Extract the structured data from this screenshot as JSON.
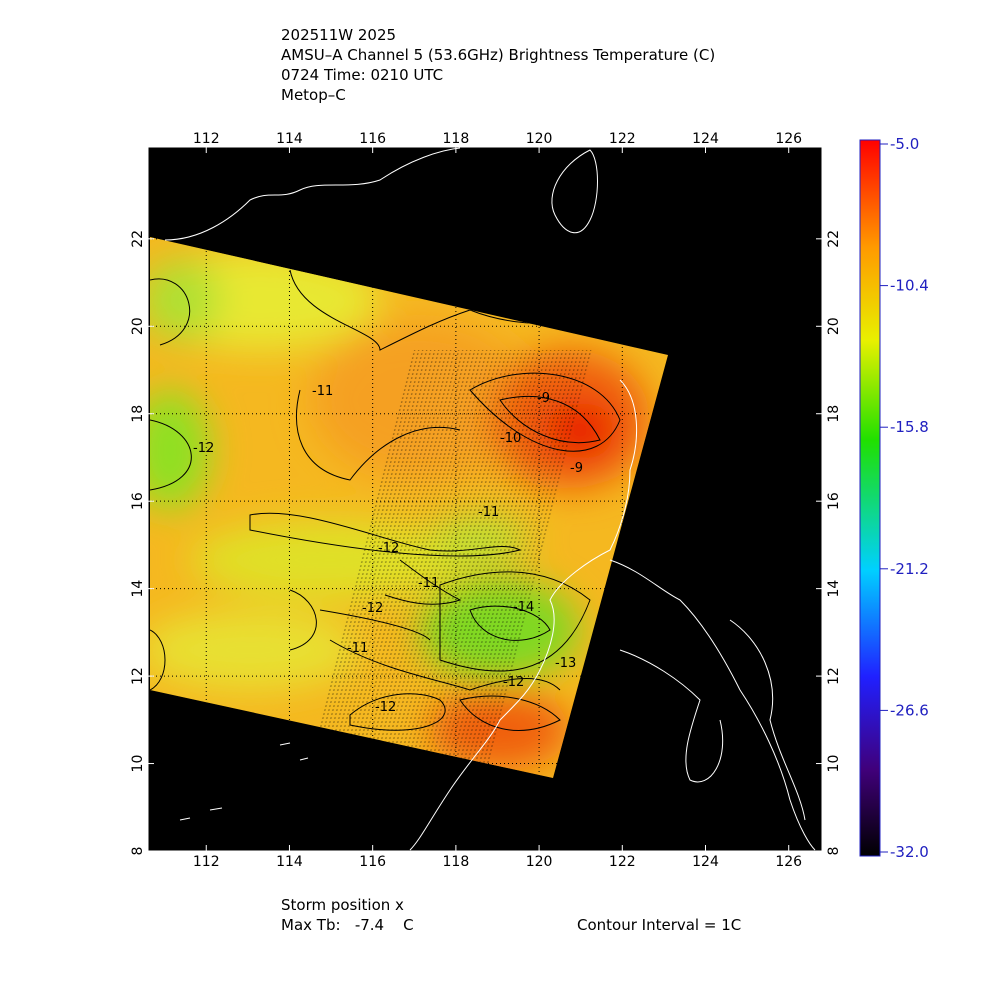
{
  "chart_data": {
    "type": "map",
    "title": [
      "202511W 2025",
      "AMSU–A Channel 5 (53.6GHz) Brightness Temperature (C)",
      "0724 Time: 0210 UTC",
      "Metop–C"
    ],
    "xlim": [
      110.6,
      126.8
    ],
    "xticks": [
      112,
      114,
      116,
      118,
      120,
      122,
      124,
      126
    ],
    "ylim": [
      8,
      24.1
    ],
    "yticks": [
      8,
      10,
      12,
      14,
      16,
      18,
      20,
      22
    ],
    "grid": true,
    "clim": [
      -32,
      -5
    ],
    "cticks": [
      {
        "value": -5,
        "label": "-5.0"
      },
      -10.4,
      -15.8,
      -21.2,
      -26.6,
      {
        "value": -32,
        "label": "-32.0"
      }
    ],
    "contour_labels": [
      "-9",
      "-10",
      "-11",
      "-12",
      "-9",
      "-11",
      "-12",
      "-11",
      "-12",
      "-14",
      "-11",
      "-12",
      "-12",
      "-13"
    ],
    "footer": [
      "Storm position x",
      "Max Tb:   -7.4    C",
      "Contour Interval = 1C"
    ]
  }
}
